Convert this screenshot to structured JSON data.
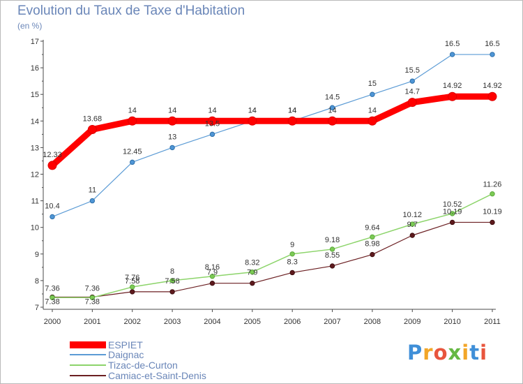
{
  "title": "Evolution du Taux de Taxe d'Habitation",
  "unit_label": "(en %)",
  "brand": {
    "text": "Proxiti",
    "colors": [
      "#3f8fd8",
      "#f2a628",
      "#e8553d",
      "#66b843",
      "#f2a628",
      "#3f8fd8",
      "#e8553d"
    ]
  },
  "chart_data": {
    "type": "line",
    "x": [
      "2000",
      "2001",
      "2002",
      "2003",
      "2004",
      "2005",
      "2006",
      "2007",
      "2008",
      "2009",
      "2010",
      "2011"
    ],
    "ylim": [
      7,
      17
    ],
    "yticks": [
      7,
      8,
      9,
      10,
      11,
      12,
      13,
      14,
      15,
      16,
      17
    ],
    "grid": false,
    "legend_position": "bottom-left",
    "series": [
      {
        "name": "ESPIET",
        "color": "#ff0000",
        "values": [
          12.33,
          13.68,
          14,
          14,
          14,
          14,
          14,
          14,
          14,
          14.7,
          14.92,
          14.92
        ],
        "labels": [
          "12.33",
          "13.68",
          "14",
          "14",
          "14",
          "14",
          "14",
          "14",
          "14",
          "14.7",
          "14.92",
          "14.92"
        ]
      },
      {
        "name": "Daignac",
        "color": "#5b9bd5",
        "values": [
          10.4,
          11,
          12.45,
          13,
          13.5,
          14,
          14,
          14.5,
          15,
          15.5,
          16.5,
          16.5
        ],
        "labels": [
          "10.4",
          "11",
          "12.45",
          "13",
          "13.5",
          "14",
          "14",
          "14.5",
          "15",
          "15.5",
          "16.5",
          "16.5"
        ]
      },
      {
        "name": "Tizac-de-Curton",
        "color": "#8cd46a",
        "values": [
          7.36,
          7.36,
          7.76,
          8,
          8.16,
          8.32,
          9,
          9.18,
          9.64,
          10.12,
          10.52,
          11.26
        ],
        "labels": [
          "7.36",
          "7.36",
          "7.76",
          "8",
          "8.16",
          "8.32",
          "9",
          "9.18",
          "9.64",
          "10.12",
          "10.52",
          "11.26"
        ]
      },
      {
        "name": "Camiac-et-Saint-Denis",
        "color": "#6b1f22",
        "values": [
          7.38,
          7.38,
          7.58,
          7.58,
          7.9,
          7.9,
          8.3,
          8.55,
          8.98,
          9.7,
          10.19,
          10.19
        ],
        "labels": [
          "7.38",
          "7.38",
          "7.58",
          "7.58",
          "7.9",
          "7.9",
          "8.3",
          "8.55",
          "8.98",
          "9.7",
          "10.19",
          "10.19"
        ]
      }
    ]
  }
}
